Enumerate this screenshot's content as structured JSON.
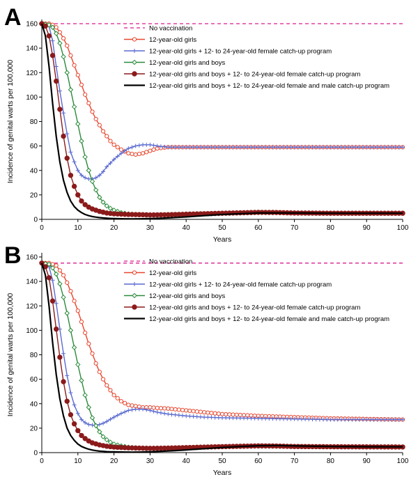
{
  "chart_data": [
    {
      "type": "line",
      "panel_label": "A",
      "xlabel": "Years",
      "ylabel": "Incidence of genital warts per 100,000",
      "xlim": [
        0,
        100
      ],
      "ylim": [
        0,
        160
      ],
      "xticks": [
        0,
        10,
        20,
        30,
        40,
        50,
        60,
        70,
        80,
        90,
        100
      ],
      "yticks": [
        0,
        20,
        40,
        60,
        80,
        100,
        120,
        140,
        160
      ],
      "grid": false,
      "legend_position": "top-right",
      "series": [
        {
          "name": "No vaccination",
          "color": "#e040a0",
          "style": "dashed",
          "x": [
            0,
            100
          ],
          "y": [
            160,
            160
          ]
        },
        {
          "name": "12-year-old girls",
          "color": "#e8452c",
          "style": "open-circle",
          "x": [
            0,
            2,
            3,
            4,
            5,
            6,
            7,
            8,
            9,
            10,
            11,
            12,
            13,
            14,
            15,
            16,
            17,
            18,
            19,
            20,
            22,
            24,
            26,
            28,
            30,
            32,
            35,
            40,
            50,
            60,
            70,
            80,
            90,
            100
          ],
          "y": [
            160,
            160,
            159,
            157,
            153,
            148,
            142,
            134,
            126,
            118,
            110,
            102,
            95,
            88,
            82,
            77,
            72,
            68,
            64,
            61,
            57,
            54,
            53,
            54,
            56,
            58,
            59,
            59,
            59,
            59,
            59,
            59,
            59,
            59
          ]
        },
        {
          "name": "12-year-old girls + 12- to 24-year-old female catch-up program",
          "color": "#5a6ad0",
          "style": "plus",
          "x": [
            0,
            2,
            3,
            4,
            5,
            6,
            7,
            8,
            9,
            10,
            11,
            12,
            13,
            14,
            15,
            16,
            17,
            18,
            20,
            22,
            24,
            26,
            28,
            30,
            32,
            35,
            40,
            50,
            60,
            70,
            80,
            90,
            100
          ],
          "y": [
            160,
            158,
            146,
            125,
            105,
            87,
            70,
            55,
            47,
            40,
            36,
            34,
            33,
            33,
            34,
            36,
            39,
            43,
            49,
            54,
            58,
            60,
            61,
            61,
            60,
            59,
            59,
            59,
            59,
            59,
            59,
            59,
            59
          ]
        },
        {
          "name": "12-year-old girls and boys",
          "color": "#2a8a3a",
          "style": "open-diamond",
          "x": [
            0,
            2,
            3,
            4,
            5,
            6,
            7,
            8,
            9,
            10,
            11,
            12,
            13,
            14,
            15,
            16,
            17,
            18,
            19,
            20,
            22,
            24,
            26,
            28,
            30,
            35,
            40,
            50,
            60,
            70,
            80,
            90,
            100
          ],
          "y": [
            160,
            159,
            157,
            152,
            144,
            133,
            120,
            106,
            92,
            78,
            64,
            51,
            40,
            31,
            24,
            18,
            14,
            11,
            9,
            7.5,
            5.5,
            4.5,
            4,
            3.8,
            3.6,
            3.8,
            4,
            4.8,
            5.5,
            5.3,
            5,
            5,
            5
          ]
        },
        {
          "name": "12-year-old girls and boys + 12- to 24-year-old female catch-up program",
          "color": "#8b1a1a",
          "style": "filled-circle",
          "x": [
            0,
            1,
            2,
            3,
            4,
            5,
            6,
            7,
            8,
            9,
            10,
            11,
            12,
            13,
            14,
            16,
            18,
            20,
            24,
            28,
            30,
            35,
            40,
            50,
            60,
            65,
            70,
            80,
            90,
            100
          ],
          "y": [
            160,
            158,
            150,
            134,
            113,
            90,
            68,
            50,
            36,
            27,
            20,
            15,
            12,
            10,
            8.5,
            6.5,
            5.2,
            4.5,
            4,
            3.8,
            3.6,
            3.8,
            4.2,
            5,
            5.7,
            5.6,
            5.2,
            5,
            5,
            5
          ]
        },
        {
          "name": "12-year-old girls and boys + 12- to 24-year-old female and male catch-up program",
          "color": "#000000",
          "style": "solid",
          "x": [
            0,
            1,
            2,
            3,
            4,
            5,
            6,
            7,
            8,
            9,
            10,
            11,
            12,
            13,
            14,
            15,
            16,
            18,
            20,
            22,
            25,
            28,
            30,
            35,
            40,
            45,
            50,
            60,
            70,
            80,
            90,
            100
          ],
          "y": [
            160,
            150,
            125,
            95,
            68,
            47,
            32,
            22,
            15,
            10.5,
            7.5,
            5.5,
            4,
            3,
            2.3,
            1.8,
            1.4,
            0.9,
            0.6,
            0.5,
            0.4,
            0.5,
            0.6,
            1.2,
            2,
            3,
            4,
            5.2,
            5.2,
            5,
            5,
            5
          ]
        }
      ]
    },
    {
      "type": "line",
      "panel_label": "B",
      "xlabel": "Years",
      "ylabel": "Incidence of genital warts per 100,000",
      "xlim": [
        0,
        100
      ],
      "ylim": [
        0,
        160
      ],
      "xticks": [
        0,
        10,
        20,
        30,
        40,
        50,
        60,
        70,
        80,
        90,
        100
      ],
      "yticks": [
        0,
        20,
        40,
        60,
        80,
        100,
        120,
        140,
        160
      ],
      "grid": false,
      "legend_position": "top-right",
      "series": [
        {
          "name": "No vaccination",
          "color": "#e040a0",
          "style": "dashed",
          "x": [
            0,
            100
          ],
          "y": [
            155,
            155
          ]
        },
        {
          "name": "12-year-old girls",
          "color": "#e8452c",
          "style": "open-circle",
          "x": [
            0,
            2,
            3,
            4,
            5,
            6,
            7,
            8,
            9,
            10,
            11,
            12,
            13,
            14,
            15,
            16,
            17,
            18,
            19,
            20,
            22,
            24,
            26,
            28,
            30,
            32,
            35,
            40,
            45,
            50,
            60,
            70,
            80,
            90,
            100
          ],
          "y": [
            155,
            155,
            154,
            153,
            149,
            145,
            139,
            132,
            124,
            116,
            107,
            98,
            89,
            81,
            73,
            66,
            60,
            55,
            51,
            47,
            42,
            39,
            38,
            37,
            37,
            36.5,
            36,
            34.5,
            33,
            31.5,
            30,
            29,
            28,
            27.5,
            27
          ]
        },
        {
          "name": "12-year-old girls + 12- to 24-year-old female catch-up program",
          "color": "#5a6ad0",
          "style": "plus",
          "x": [
            0,
            2,
            3,
            4,
            5,
            6,
            7,
            8,
            9,
            10,
            11,
            12,
            13,
            14,
            15,
            16,
            17,
            18,
            20,
            22,
            24,
            26,
            28,
            30,
            32,
            35,
            40,
            45,
            50,
            60,
            70,
            80,
            90,
            100
          ],
          "y": [
            155,
            152,
            141,
            122,
            101,
            81,
            63,
            49,
            39,
            32,
            27,
            24.5,
            23,
            22.5,
            22.5,
            23,
            24,
            25.5,
            29,
            32,
            34.5,
            35.5,
            35.5,
            34.5,
            33,
            31.5,
            30,
            29,
            28.5,
            28,
            27.5,
            27,
            27,
            27
          ]
        },
        {
          "name": "12-year-old girls and boys",
          "color": "#2a8a3a",
          "style": "open-diamond",
          "x": [
            0,
            2,
            3,
            4,
            5,
            6,
            7,
            8,
            9,
            10,
            11,
            12,
            13,
            14,
            15,
            16,
            17,
            18,
            19,
            20,
            22,
            24,
            26,
            28,
            30,
            35,
            40,
            50,
            60,
            70,
            80,
            90,
            100
          ],
          "y": [
            155,
            154,
            151,
            146,
            138,
            127,
            114,
            100,
            86,
            72,
            59,
            47,
            37,
            28.5,
            22,
            17,
            13,
            10.5,
            8.5,
            7,
            5.5,
            4.5,
            4,
            3.8,
            3.6,
            3.8,
            4.2,
            4.8,
            5.3,
            5,
            4.8,
            4.7,
            4.6
          ]
        },
        {
          "name": "12-year-old girls and boys + 12- to 24-year-old female catch-up program",
          "color": "#8b1a1a",
          "style": "filled-circle",
          "x": [
            0,
            1,
            2,
            3,
            4,
            5,
            6,
            7,
            8,
            9,
            10,
            11,
            12,
            13,
            14,
            16,
            18,
            20,
            24,
            28,
            30,
            35,
            40,
            50,
            60,
            65,
            70,
            80,
            90,
            100
          ],
          "y": [
            155,
            152,
            143,
            124,
            101,
            78,
            58,
            42,
            31,
            23.5,
            18,
            14,
            11.5,
            9.5,
            8,
            6.3,
            5.2,
            4.5,
            3.9,
            3.6,
            3.5,
            3.7,
            4.1,
            4.9,
            5.5,
            5.4,
            5,
            4.8,
            4.7,
            4.6
          ]
        },
        {
          "name": "12-year-old girls and boys + 12- to 24-year-old female and male catch-up program",
          "color": "#000000",
          "style": "solid",
          "x": [
            0,
            1,
            2,
            3,
            4,
            5,
            6,
            7,
            8,
            9,
            10,
            11,
            12,
            13,
            14,
            15,
            16,
            18,
            20,
            22,
            25,
            28,
            30,
            35,
            40,
            45,
            50,
            55,
            60,
            65,
            70,
            80,
            90,
            100
          ],
          "y": [
            155,
            145,
            120,
            90,
            64,
            44,
            30,
            20,
            14,
            10,
            7,
            5,
            3.8,
            2.8,
            2.1,
            1.6,
            1.2,
            0.8,
            0.6,
            0.5,
            0.4,
            0.5,
            0.7,
            1.3,
            2.2,
            3.2,
            4.2,
            5,
            5.6,
            5.8,
            5.5,
            5,
            4.8,
            4.7
          ]
        }
      ]
    }
  ]
}
